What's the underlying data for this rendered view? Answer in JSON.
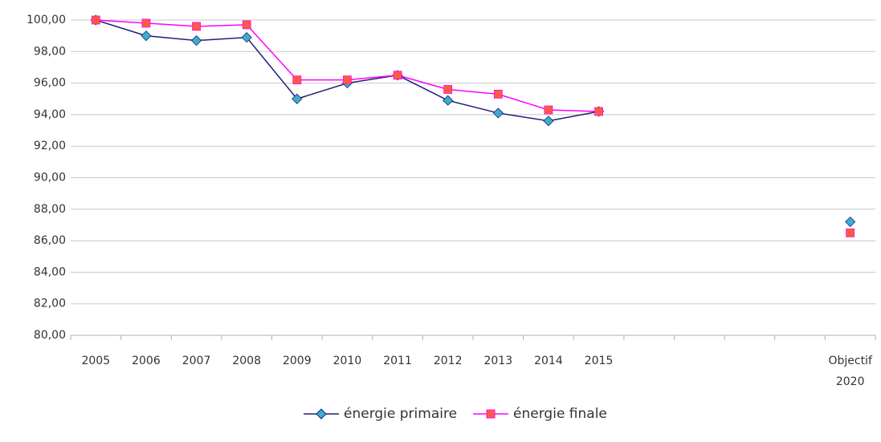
{
  "chart_data": {
    "type": "line",
    "categories": [
      "2005",
      "2006",
      "2007",
      "2008",
      "2009",
      "2010",
      "2011",
      "2012",
      "2013",
      "2014",
      "2015",
      null,
      null,
      null,
      null,
      "Objectif 2020"
    ],
    "series": [
      {
        "name": "énergie primaire",
        "color": "#1f1f7a",
        "marker": "diamond",
        "marker_color": "#3ab0c8",
        "values": [
          100.0,
          99.0,
          98.7,
          98.9,
          95.0,
          96.0,
          96.5,
          94.9,
          94.1,
          93.6,
          94.2,
          null,
          null,
          null,
          null,
          87.2
        ]
      },
      {
        "name": "énergie finale",
        "color": "#ff00ff",
        "marker": "square",
        "marker_color": "#ff5a3c",
        "values": [
          100.0,
          99.8,
          99.6,
          99.7,
          96.2,
          96.2,
          96.5,
          95.6,
          95.3,
          94.3,
          94.2,
          null,
          null,
          null,
          null,
          86.5
        ]
      }
    ],
    "ylim": [
      80,
      100
    ],
    "yticks": [
      {
        "value": 80,
        "label": "80,00"
      },
      {
        "value": 82,
        "label": "82,00"
      },
      {
        "value": 84,
        "label": "84,00"
      },
      {
        "value": 86,
        "label": "86,00"
      },
      {
        "value": 88,
        "label": "88,00"
      },
      {
        "value": 90,
        "label": "90,00"
      },
      {
        "value": 92,
        "label": "92,00"
      },
      {
        "value": 94,
        "label": "94,00"
      },
      {
        "value": 96,
        "label": "96,00"
      },
      {
        "value": 98,
        "label": "98,00"
      },
      {
        "value": 100,
        "label": "100,00"
      }
    ],
    "grid": true,
    "legend": "bottom"
  }
}
